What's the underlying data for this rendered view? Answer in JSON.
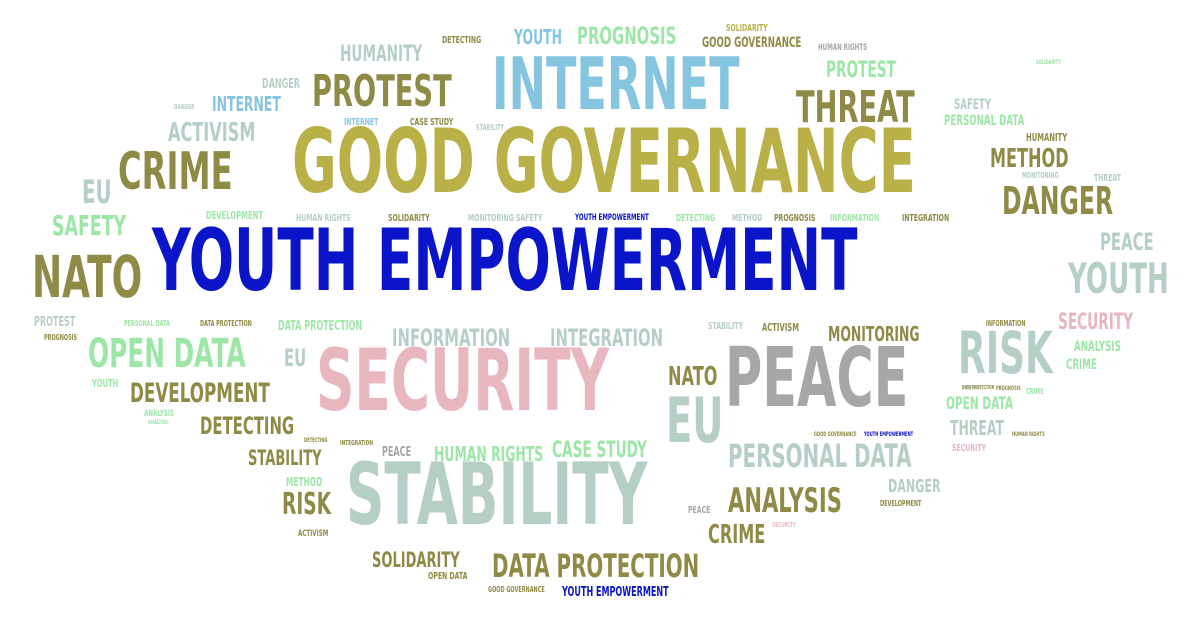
{
  "palette": {
    "blue": "#0a14c8",
    "olive": "#8f8a45",
    "gold": "#b9b048",
    "sky": "#86c5e0",
    "pink": "#e8b7bd",
    "sage": "#b6cfc3",
    "gray": "#a7a7a7",
    "mint": "#9ee6a8",
    "dark": "#6d6a3c"
  },
  "words": [
    {
      "id": "w1",
      "text": "YOUTH EMPOWERMENT",
      "color": "blue"
    },
    {
      "id": "w2",
      "text": "GOOD GOVERNANCE",
      "color": "gold"
    },
    {
      "id": "w3",
      "text": "INTERNET",
      "color": "sky"
    },
    {
      "id": "w4",
      "text": "SECURITY",
      "color": "pink"
    },
    {
      "id": "w5",
      "text": "STABILITY",
      "color": "sage"
    },
    {
      "id": "w6",
      "text": "PEACE",
      "color": "gray"
    },
    {
      "id": "w7",
      "text": "PROTEST",
      "color": "olive"
    },
    {
      "id": "w8",
      "text": "THREAT",
      "color": "olive"
    },
    {
      "id": "w9",
      "text": "CRIME",
      "color": "olive"
    },
    {
      "id": "w10",
      "text": "NATO",
      "color": "olive"
    },
    {
      "id": "w11",
      "text": "RISK",
      "color": "sage"
    },
    {
      "id": "w12",
      "text": "DANGER",
      "color": "olive"
    },
    {
      "id": "w13",
      "text": "METHOD",
      "color": "olive"
    },
    {
      "id": "w14",
      "text": "YOUTH",
      "color": "sage"
    },
    {
      "id": "w15",
      "text": "PEACE",
      "color": "sage"
    },
    {
      "id": "w16",
      "text": "EU",
      "color": "sage"
    },
    {
      "id": "w17",
      "text": "OPEN DATA",
      "color": "mint"
    },
    {
      "id": "w18",
      "text": "DEVELOPMENT",
      "color": "olive"
    },
    {
      "id": "w19",
      "text": "DETECTING",
      "color": "olive"
    },
    {
      "id": "w20",
      "text": "INFORMATION",
      "color": "sage"
    },
    {
      "id": "w21",
      "text": "INTEGRATION",
      "color": "sage"
    },
    {
      "id": "w22",
      "text": "PERSONAL DATA",
      "color": "sage"
    },
    {
      "id": "w23",
      "text": "ANALYSIS",
      "color": "olive"
    },
    {
      "id": "w24",
      "text": "DATA PROTECTION",
      "color": "olive"
    },
    {
      "id": "w25",
      "text": "SAFETY",
      "color": "mint"
    },
    {
      "id": "w26",
      "text": "ACTIVISM",
      "color": "sage"
    },
    {
      "id": "w27",
      "text": "INTERNET",
      "color": "sky"
    },
    {
      "id": "w28",
      "text": "HUMANITY",
      "color": "sage"
    },
    {
      "id": "w29",
      "text": "PROGNOSIS",
      "color": "mint"
    },
    {
      "id": "w30",
      "text": "YOUTH",
      "color": "sky"
    },
    {
      "id": "w31",
      "text": "EU",
      "color": "sage"
    },
    {
      "id": "w32",
      "text": "NATO",
      "color": "olive"
    },
    {
      "id": "w33",
      "text": "STABILITY",
      "color": "olive"
    },
    {
      "id": "w34",
      "text": "RISK",
      "color": "olive"
    },
    {
      "id": "w35",
      "text": "SOLIDARITY",
      "color": "olive"
    },
    {
      "id": "w36",
      "text": "CRIME",
      "color": "olive"
    },
    {
      "id": "w37",
      "text": "CASE STUDY",
      "color": "mint"
    },
    {
      "id": "w38",
      "text": "HUMAN RIGHTS",
      "color": "mint"
    },
    {
      "id": "w39",
      "text": "MONITORING",
      "color": "olive"
    },
    {
      "id": "w40",
      "text": "SECURITY",
      "color": "pink"
    },
    {
      "id": "w41",
      "text": "PROTEST",
      "color": "mint"
    },
    {
      "id": "w42",
      "text": "GOOD GOVERNANCE",
      "color": "olive"
    },
    {
      "id": "w43",
      "text": "DETECTING",
      "color": "olive"
    },
    {
      "id": "w44",
      "text": "SOLIDARITY",
      "color": "gold"
    },
    {
      "id": "w45",
      "text": "HUMAN RIGHTS",
      "color": "gray"
    },
    {
      "id": "w46",
      "text": "DANGER",
      "color": "sage"
    },
    {
      "id": "w47",
      "text": "ANALYSIS",
      "color": "mint"
    },
    {
      "id": "w48",
      "text": "CRIME",
      "color": "mint"
    },
    {
      "id": "w49",
      "text": "OPEN DATA",
      "color": "mint"
    },
    {
      "id": "w50",
      "text": "THREAT",
      "color": "sage"
    },
    {
      "id": "w51",
      "text": "SAFETY",
      "color": "sage"
    },
    {
      "id": "w52",
      "text": "PERSONAL DATA",
      "color": "mint"
    },
    {
      "id": "w53",
      "text": "HUMANITY",
      "color": "olive"
    },
    {
      "id": "w54",
      "text": "MONITORING",
      "color": "sage"
    },
    {
      "id": "w55",
      "text": "THREAT",
      "color": "sage"
    },
    {
      "id": "w56",
      "text": "PROTEST",
      "color": "sage"
    },
    {
      "id": "w57",
      "text": "PROGNOSIS",
      "color": "olive"
    },
    {
      "id": "w58",
      "text": "DEVELOPMENT",
      "color": "mint"
    },
    {
      "id": "w59",
      "text": "HUMAN RIGHTS",
      "color": "sage"
    },
    {
      "id": "w60",
      "text": "SOLIDARITY",
      "color": "olive"
    },
    {
      "id": "w61",
      "text": "MONITORING SAFETY",
      "color": "sage"
    },
    {
      "id": "w62",
      "text": "YOUTH EMPOWERMENT",
      "color": "blue"
    },
    {
      "id": "w63",
      "text": "DETECTING",
      "color": "mint"
    },
    {
      "id": "w64",
      "text": "METHOD",
      "color": "sage"
    },
    {
      "id": "w65",
      "text": "PROGNOSIS",
      "color": "olive"
    },
    {
      "id": "w66",
      "text": "INFORMATION",
      "color": "mint"
    },
    {
      "id": "w67",
      "text": "INTEGRATION",
      "color": "olive"
    },
    {
      "id": "w68",
      "text": "PERSONAL DATA",
      "color": "mint"
    },
    {
      "id": "w69",
      "text": "DATA PROTECTION",
      "color": "olive"
    },
    {
      "id": "w70",
      "text": "DATA PROTECTION",
      "color": "mint"
    },
    {
      "id": "w71",
      "text": "STABILITY",
      "color": "sage"
    },
    {
      "id": "w72",
      "text": "ACTIVISM",
      "color": "olive"
    },
    {
      "id": "w73",
      "text": "INFORMATION",
      "color": "olive"
    },
    {
      "id": "w74",
      "text": "ANALYSIS",
      "color": "mint"
    },
    {
      "id": "w75",
      "text": "CRIME",
      "color": "mint"
    },
    {
      "id": "w76",
      "text": "PROTEST",
      "color": "sage"
    },
    {
      "id": "w77",
      "text": "PROGNOSIS",
      "color": "olive"
    },
    {
      "id": "w78",
      "text": "YOUTH",
      "color": "mint"
    },
    {
      "id": "w79",
      "text": "ANALYSIS",
      "color": "mint"
    },
    {
      "id": "w80",
      "text": "INTEGRATION",
      "color": "olive"
    },
    {
      "id": "w81",
      "text": "PEACE",
      "color": "gray"
    },
    {
      "id": "w82",
      "text": "METHOD",
      "color": "mint"
    },
    {
      "id": "w83",
      "text": "ACTIVISM",
      "color": "olive"
    },
    {
      "id": "w84",
      "text": "OPEN DATA",
      "color": "olive"
    },
    {
      "id": "w85",
      "text": "GOOD GOVERNANCE",
      "color": "olive"
    },
    {
      "id": "w86",
      "text": "YOUTH EMPOWERMENT",
      "color": "blue"
    },
    {
      "id": "w87",
      "text": "PEACE",
      "color": "gray"
    },
    {
      "id": "w88",
      "text": "SECURITY",
      "color": "pink"
    },
    {
      "id": "w89",
      "text": "GOOD GOVERNANCE",
      "color": "olive"
    },
    {
      "id": "w90",
      "text": "YOUTH EMPOWERMENT",
      "color": "blue"
    },
    {
      "id": "w91",
      "text": "DATA PROTECTION",
      "color": "olive"
    },
    {
      "id": "w92",
      "text": "DEVELOPMENT",
      "color": "olive"
    },
    {
      "id": "w93",
      "text": "SECURITY",
      "color": "pink"
    },
    {
      "id": "w94",
      "text": "DANGER",
      "color": "sage"
    },
    {
      "id": "w95",
      "text": "EU",
      "color": "sage"
    },
    {
      "id": "w96",
      "text": "CASE STUDY",
      "color": "olive"
    },
    {
      "id": "w97",
      "text": "STABILITY",
      "color": "sage"
    },
    {
      "id": "w98",
      "text": "INTERNET",
      "color": "sky"
    },
    {
      "id": "w99",
      "text": "DETECTING",
      "color": "olive"
    },
    {
      "id": "w100",
      "text": "HUMAN RIGHTS",
      "color": "olive"
    },
    {
      "id": "w101",
      "text": "SOLIDARITY",
      "color": "mint"
    },
    {
      "id": "w102",
      "text": "DANGER",
      "color": "sage"
    }
  ]
}
